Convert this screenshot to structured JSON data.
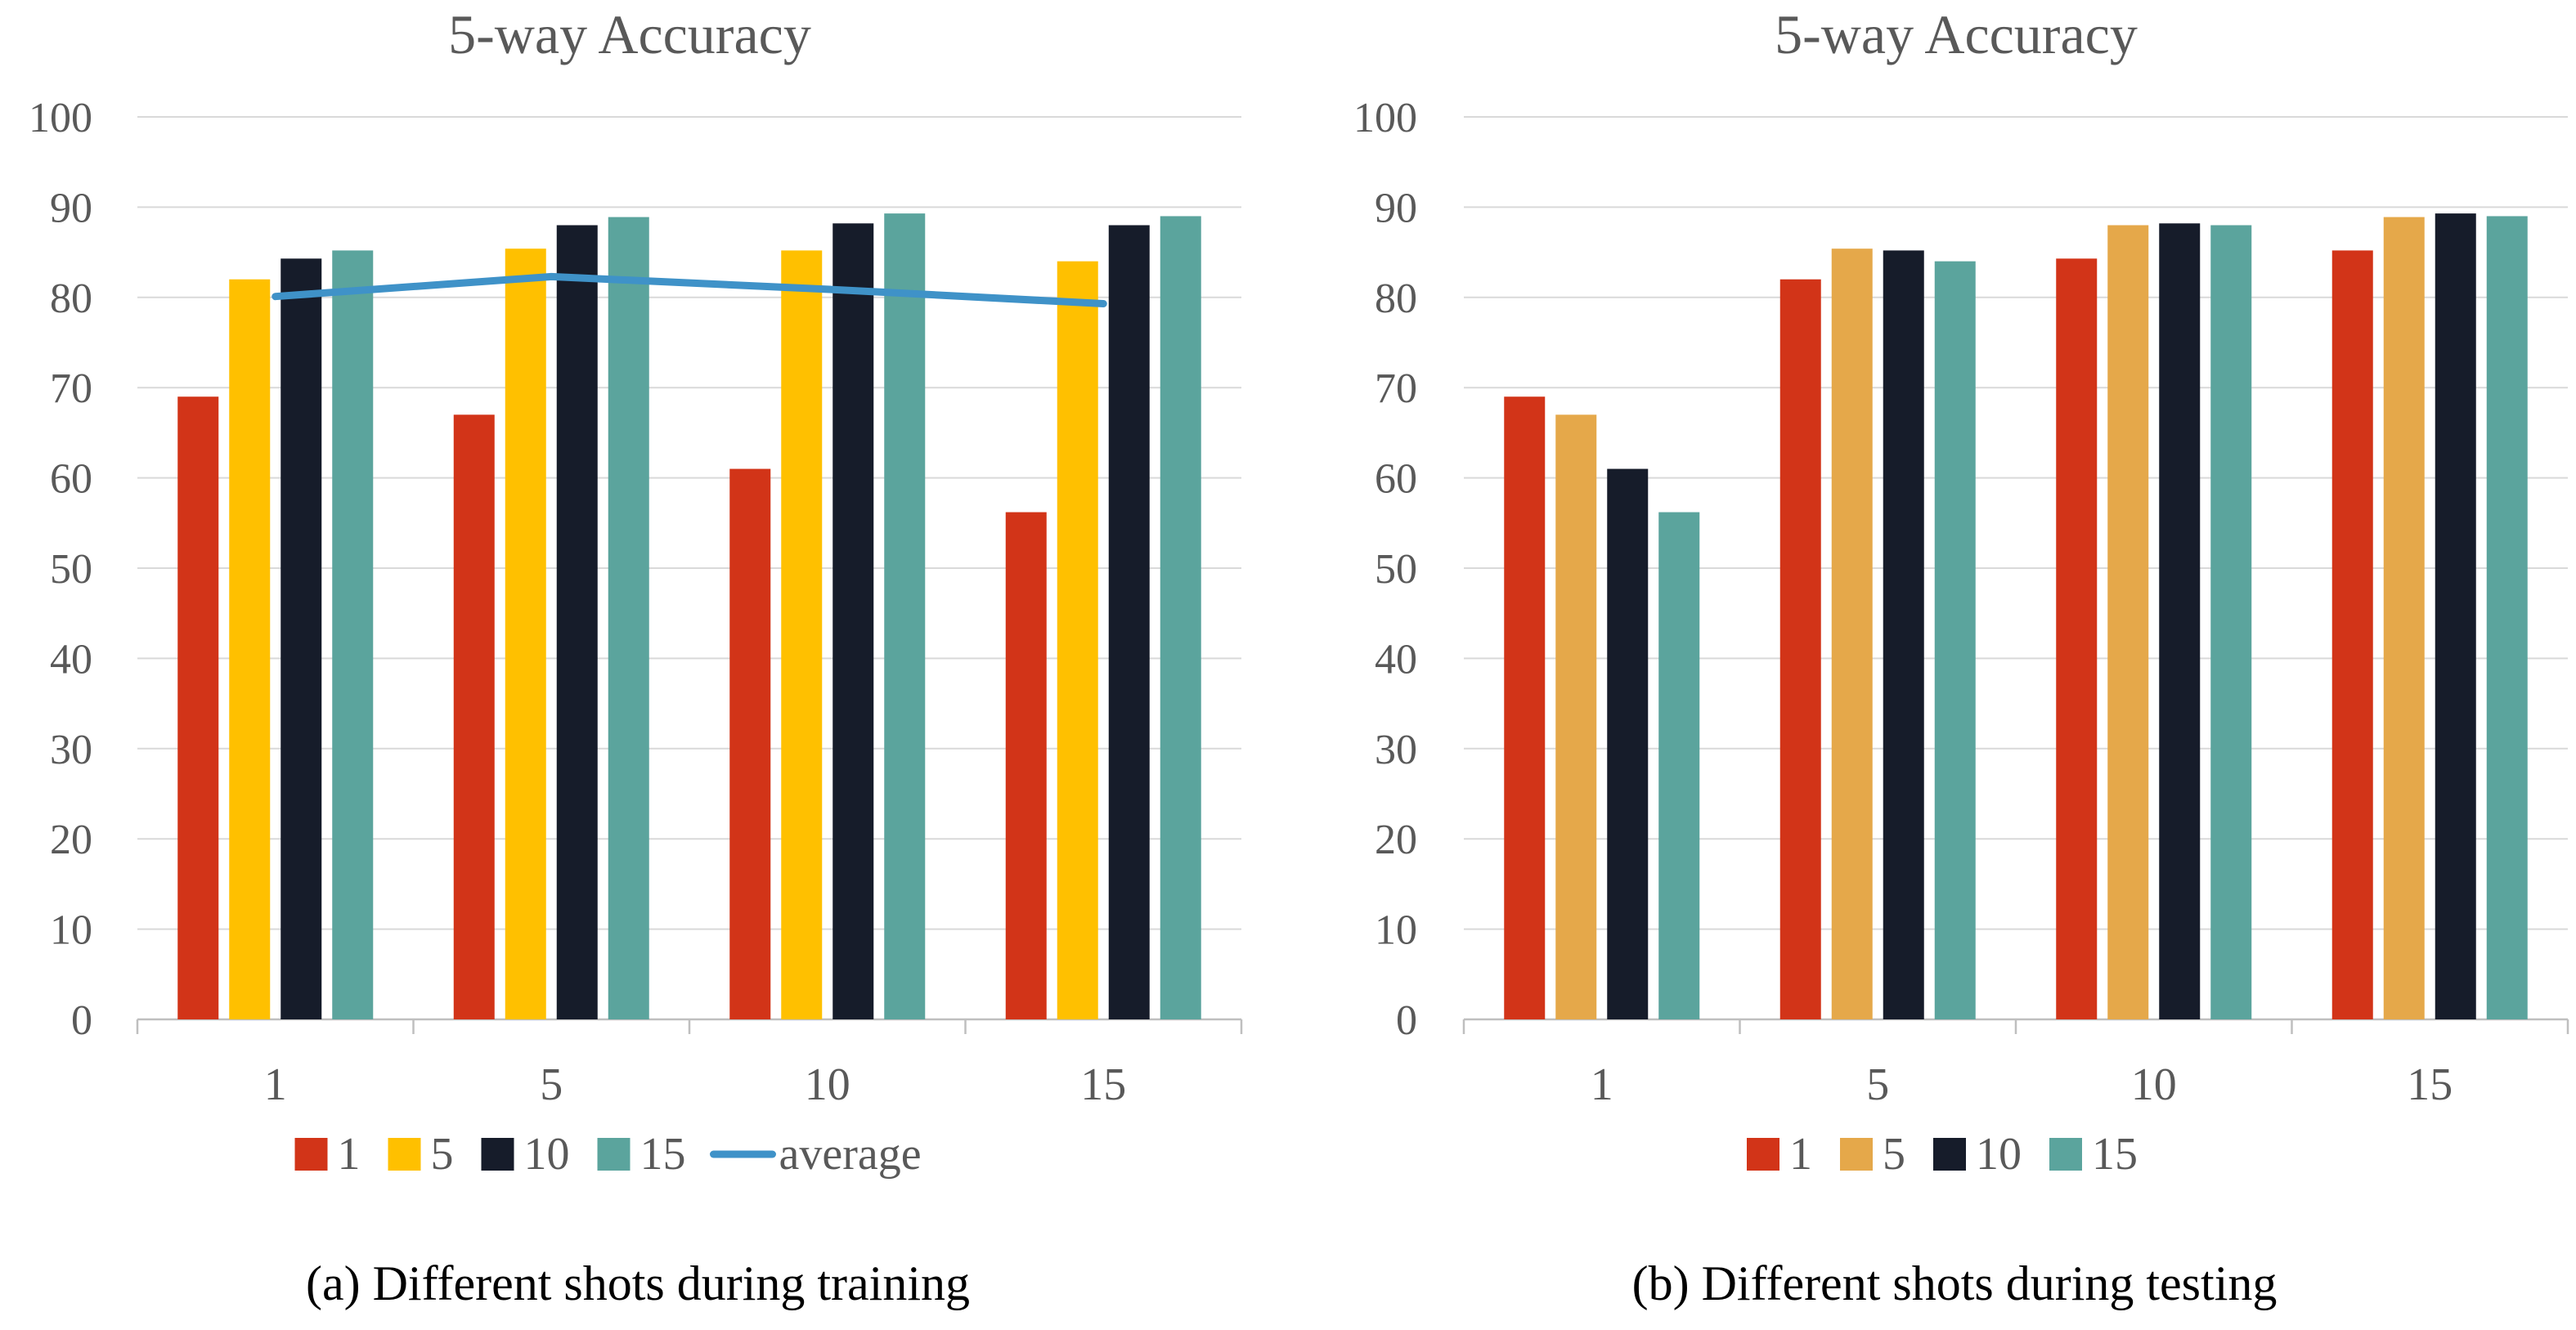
{
  "chart_data": [
    {
      "type": "bar",
      "title": "5-way Accuracy",
      "caption": "(a) Different shots during training",
      "categories": [
        "1",
        "5",
        "10",
        "15"
      ],
      "ylim": [
        0,
        100
      ],
      "yticks": [
        "0",
        "10",
        "20",
        "30",
        "40",
        "50",
        "60",
        "70",
        "80",
        "90",
        "100"
      ],
      "grid": true,
      "legend_position": "bottom",
      "series": [
        {
          "name": "1",
          "color": "#D23418",
          "values": [
            69,
            67,
            61,
            56.2
          ]
        },
        {
          "name": "5",
          "color": "#FFC000",
          "values": [
            82,
            85.4,
            85.2,
            84
          ]
        },
        {
          "name": "10",
          "color": "#161C2A",
          "values": [
            84.3,
            88,
            88.2,
            88
          ]
        },
        {
          "name": "15",
          "color": "#5BA49D",
          "values": [
            85.2,
            88.9,
            89.3,
            89
          ]
        }
      ],
      "line_series": [
        {
          "name": "average",
          "color": "#3F92C8",
          "values": [
            80.1,
            82.3,
            80.9,
            79.3
          ]
        }
      ]
    },
    {
      "type": "bar",
      "title": "5-way Accuracy",
      "caption": "(b) Different shots during testing",
      "categories": [
        "1",
        "5",
        "10",
        "15"
      ],
      "ylim": [
        0,
        100
      ],
      "yticks": [
        "0",
        "10",
        "20",
        "30",
        "40",
        "50",
        "60",
        "70",
        "80",
        "90",
        "100"
      ],
      "grid": true,
      "legend_position": "bottom",
      "series": [
        {
          "name": "1",
          "color": "#D23418",
          "values": [
            69,
            82,
            84.3,
            85.2
          ]
        },
        {
          "name": "5",
          "color": "#E5A84A",
          "values": [
            67,
            85.4,
            88,
            88.9
          ]
        },
        {
          "name": "10",
          "color": "#161C2A",
          "values": [
            61,
            85.2,
            88.2,
            89.3
          ]
        },
        {
          "name": "15",
          "color": "#5BA49D",
          "values": [
            56.2,
            84,
            88,
            89
          ]
        }
      ],
      "line_series": []
    }
  ]
}
